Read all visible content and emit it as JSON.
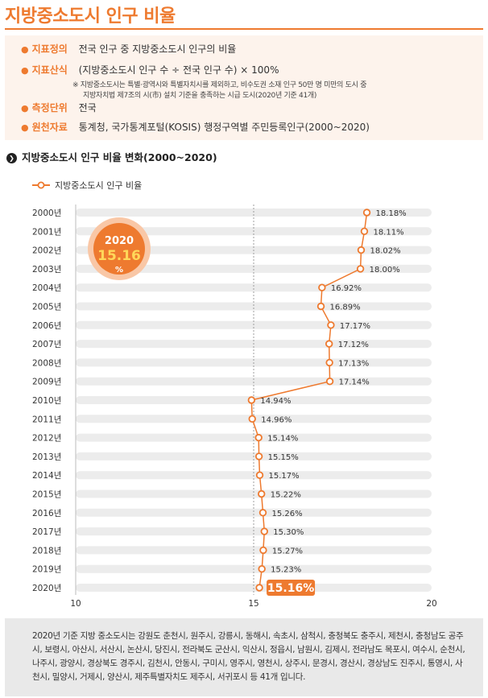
{
  "page": {
    "title": "지방중소도시 인구 비율"
  },
  "info": {
    "definition_key": "지표정의",
    "definition_value": "전국 인구 중 지방중소도시 인구의 비율",
    "formula_key": "지표산식",
    "formula_value": "(지방중소도시 인구 수 ÷ 전국 인구 수) × 100%",
    "formula_note_1": "※ 지방중소도시는 특별·광역시와 특별자치시를 제외하고, 비수도권 소재 인구 50만 명 미만의 도시 중",
    "formula_note_2": "지방자치법 제7조의 시(市) 설치 기준을 충족하는 시급 도시(2020년 기준 41개)",
    "unit_key": "측정단위",
    "unit_value": "전국",
    "source_key": "원천자료",
    "source_value": "통계청, 국가통계포털(KOSIS) 행정구역별 주민등록인구(2000~2020)"
  },
  "chart_section": {
    "subtitle": "지방중소도시 인구 비율 변화(2000~2020)"
  },
  "badge": {
    "year": "2020",
    "value": "15.16",
    "unit": "%"
  },
  "chart_data": {
    "type": "line",
    "title": "",
    "legend": [
      "지방중소도시 인구 비율"
    ],
    "legend_position": "top-left",
    "orientation": "horizontal",
    "categories": [
      "2000년",
      "2001년",
      "2002년",
      "2003년",
      "2004년",
      "2005년",
      "2006년",
      "2007년",
      "2008년",
      "2009년",
      "2010년",
      "2011년",
      "2012년",
      "2013년",
      "2014년",
      "2015년",
      "2016년",
      "2017년",
      "2018년",
      "2019년",
      "2020년"
    ],
    "series": [
      {
        "name": "지방중소도시 인구 비율",
        "values": [
          18.18,
          18.11,
          18.02,
          18.0,
          16.92,
          16.89,
          17.17,
          17.12,
          17.13,
          17.14,
          14.94,
          14.96,
          15.14,
          15.15,
          15.17,
          15.22,
          15.26,
          15.3,
          15.27,
          15.23,
          15.16
        ],
        "labels": [
          "18.18%",
          "18.11%",
          "18.02%",
          "18.00%",
          "16.92%",
          "16.89%",
          "17.17%",
          "17.12%",
          "17.13%",
          "17.14%",
          "14.94%",
          "14.96%",
          "15.14%",
          "15.15%",
          "15.17%",
          "15.22%",
          "15.26%",
          "15.30%",
          "15.27%",
          "15.23%",
          "15.16%"
        ]
      }
    ],
    "xlim": [
      10,
      20
    ],
    "xticks": [
      "10",
      "15",
      "20"
    ],
    "reference_line": 15,
    "colors": {
      "line": "#ee7a2f",
      "highlight": "#ee7a2f",
      "bar": "#ececec"
    }
  },
  "footer": {
    "text": "2020년 기준 지방 중소도시는 강원도 춘천시, 원주시, 강릉시, 동해시, 속초시, 삼척시, 충청북도 충주시, 제천시, 충청남도 공주시, 보령시, 아산시, 서산시, 논산시, 당진시, 전라북도 군산시, 익산시, 정읍시, 남원시, 김제시, 전라남도 목포시, 여수시, 순천시, 나주시, 광양시, 경상북도 경주시, 김천시, 안동시, 구미시, 영주시, 영천시, 상주시, 문경시, 경산시, 경상남도 진주시, 통영시, 사천시, 밀양시, 거제시, 양산시, 제주특별자치도 제주시, 서귀포시 등 41개 입니다."
  }
}
